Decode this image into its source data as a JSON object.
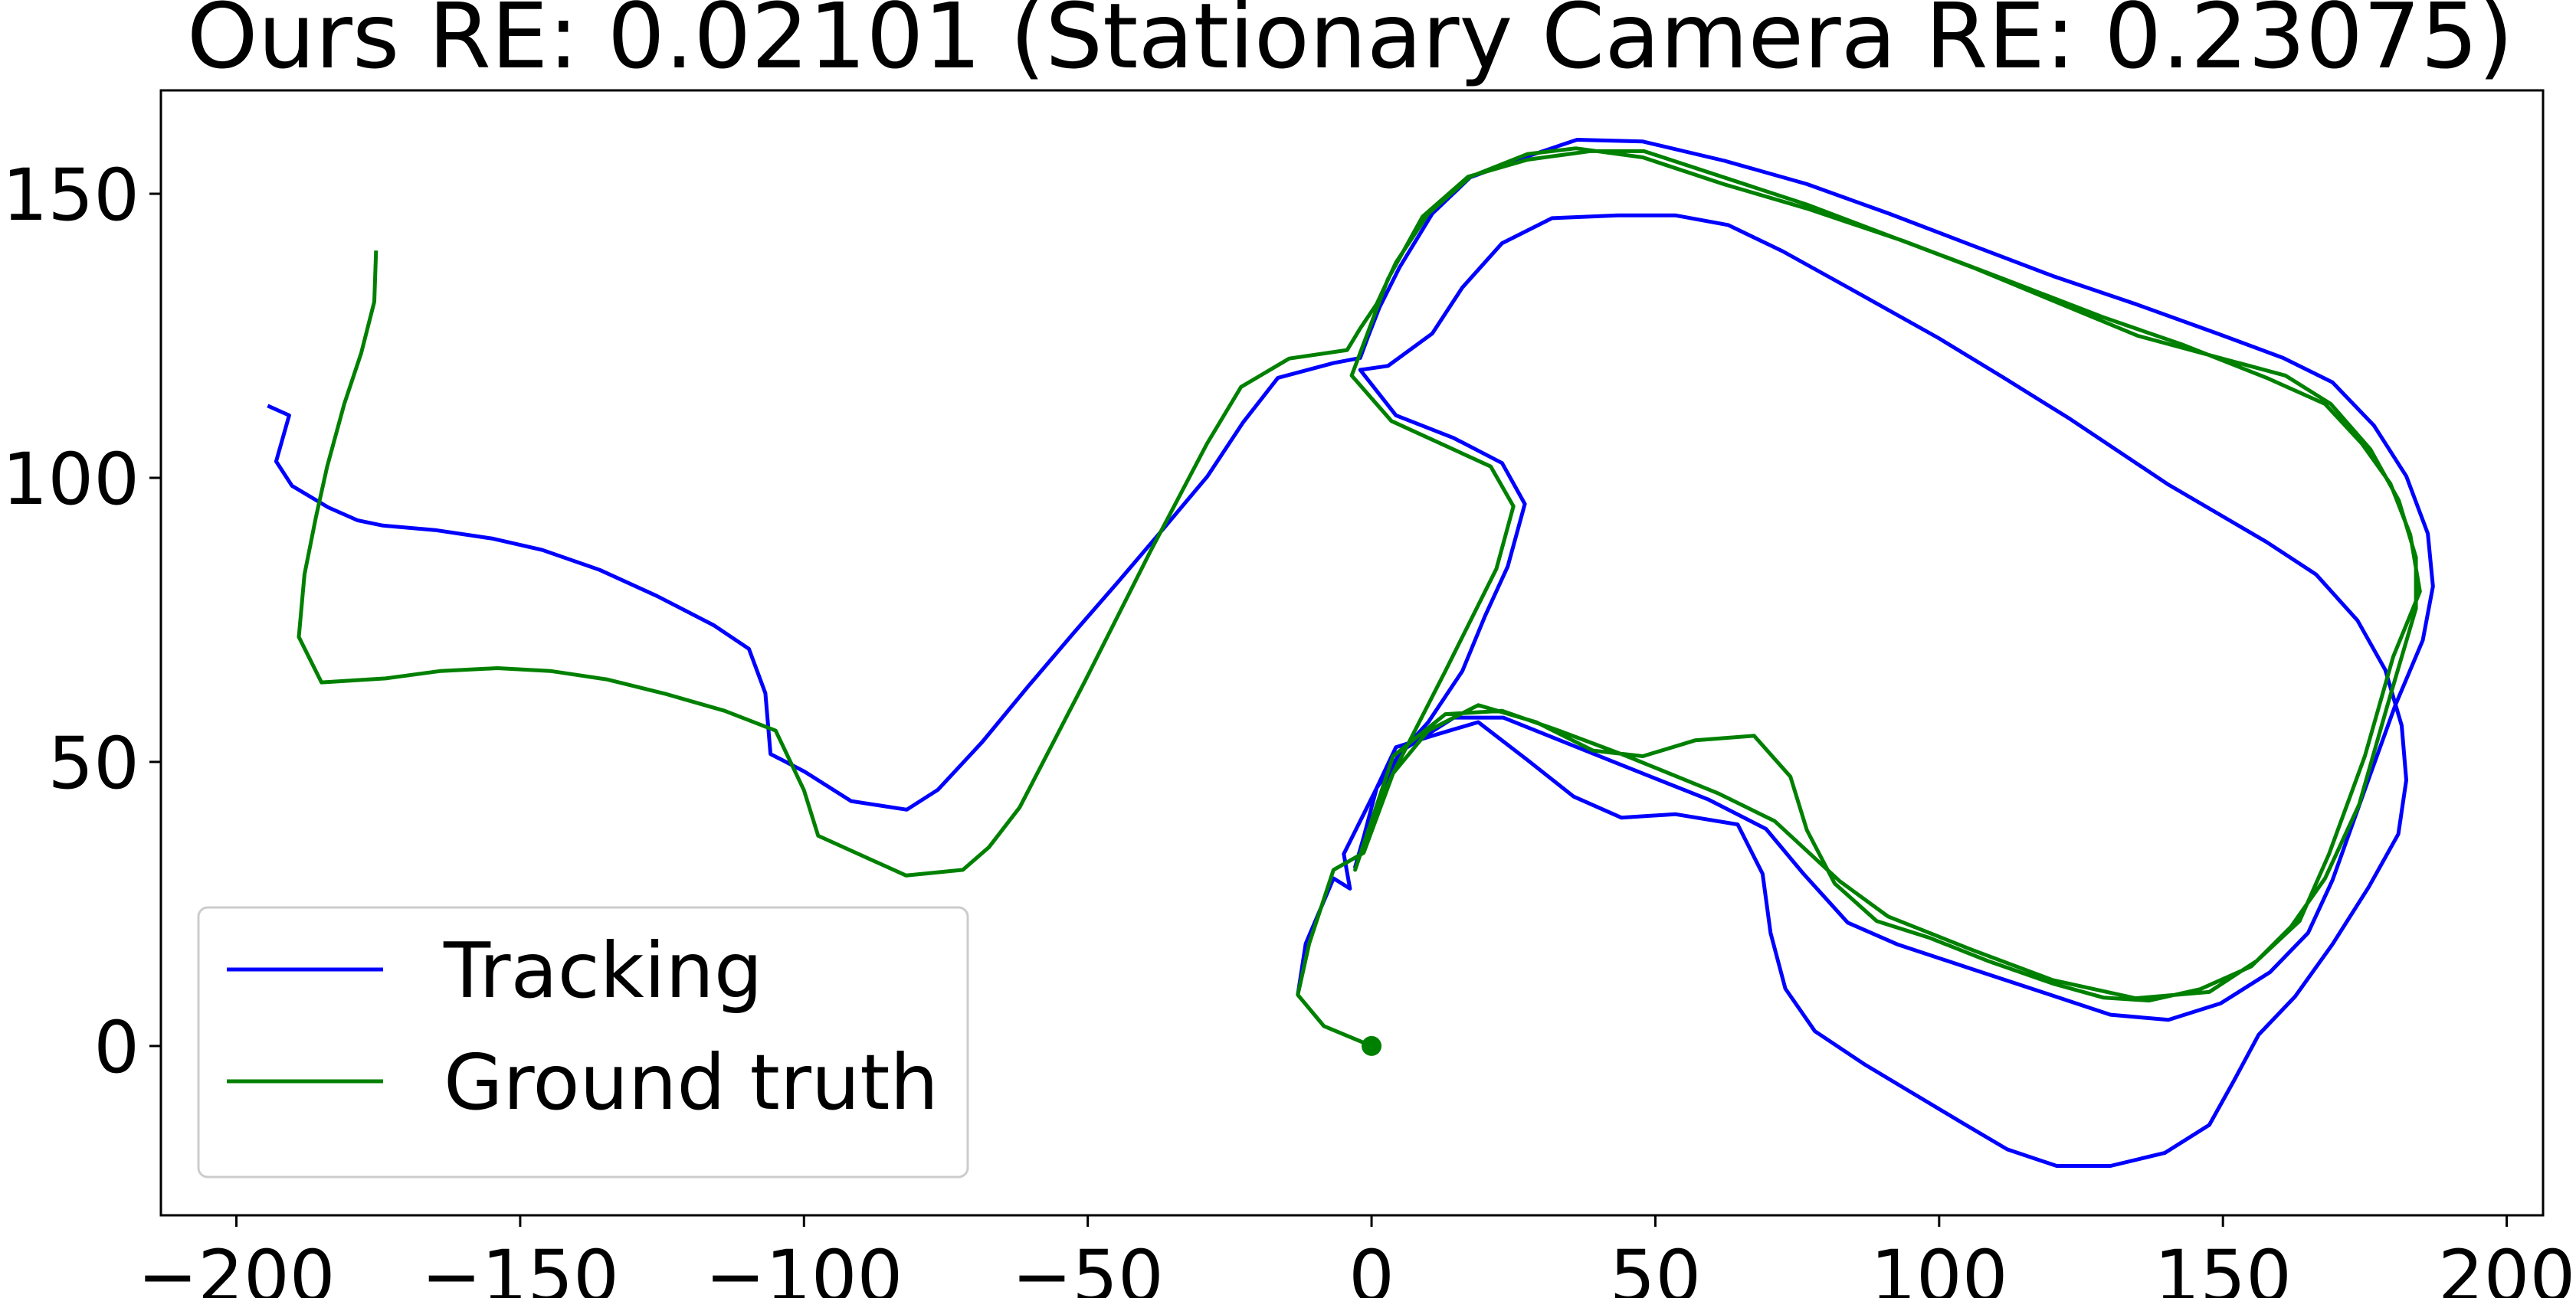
{
  "chart_data": {
    "type": "line",
    "title": "Ours RE: 0.02101 (Stationary Camera RE: 0.23075)",
    "xlim": [
      -213.3,
      206.4
    ],
    "ylim": [
      -29.8,
      168.2
    ],
    "xticks": [
      {
        "value": -200,
        "label": "−200"
      },
      {
        "value": -150,
        "label": "−150"
      },
      {
        "value": -100,
        "label": "−100"
      },
      {
        "value": -50,
        "label": "−50"
      },
      0,
      50,
      100,
      150,
      200
    ],
    "yticks": [
      0,
      50,
      100,
      150
    ],
    "grid": false,
    "legend": "lower left",
    "series": [
      {
        "name": "Tracking",
        "color": "#0000ff",
        "x": [
          -13,
          -11.6,
          -6.7,
          -3.8,
          -4.9,
          0.9,
          5.2,
          10,
          16,
          20,
          24,
          27,
          23,
          14.5,
          4.3,
          -2,
          2.9,
          10.7,
          16,
          23,
          31.8,
          43.4,
          53.5,
          62.8,
          72.4,
          85.4,
          99.9,
          111.4,
          123,
          140.4,
          157.7,
          166.4,
          173.7,
          178.6,
          181.5,
          182.3,
          180.9,
          175.7,
          169.3,
          162.7,
          156.3,
          152,
          147.6,
          139.8,
          130.2,
          120.7,
          112,
          104.2,
          94,
          86.8,
          78.1,
          72.9,
          70.3,
          68.9,
          64.5,
          53.5,
          44,
          35.6,
          27.5,
          18.8,
          10.7,
          4.3,
          0.9,
          -1.4,
          -2.9,
          0,
          4.9,
          14.5,
          23.2,
          32.7,
          44.9,
          59.3,
          69.5,
          76.1,
          83.9,
          92.6,
          105.6,
          117.2,
          130.2,
          140.4,
          149.6,
          158.3,
          165,
          169.3,
          175.1,
          180.3,
          185.2,
          187,
          186.1,
          182.3,
          176.6,
          169.3,
          160.6,
          149,
          134.6,
          120.1,
          105.6,
          91.2,
          76.7,
          62.2,
          47.8,
          36.2,
          27.5,
          17.4,
          10.7,
          4.9,
          1.4,
          -0.6,
          -2,
          -6.7,
          -16.5,
          -22.6,
          -28.9,
          -36.2,
          -44.3,
          -52.4,
          -60.5,
          -68.6,
          -76.4,
          -81.9,
          -91.7,
          -99.9,
          -105.9,
          -106.8,
          -109.7,
          -115.8,
          -125.9,
          -136,
          -146.1,
          -154.8,
          -165,
          -174.2,
          -178.6,
          -183.8,
          -190.2,
          -193,
          -190.7,
          -194.5
        ],
        "values": [
          9,
          18,
          29.5,
          27.7,
          33.8,
          45.4,
          51.7,
          57,
          66,
          75.7,
          84.4,
          95.4,
          102.6,
          107,
          111,
          119,
          119.7,
          125.4,
          133.5,
          141.3,
          145.7,
          146.2,
          146.2,
          144.5,
          139.9,
          132.7,
          124.6,
          117.6,
          110.4,
          98.8,
          88.7,
          83,
          74.9,
          66.2,
          56.4,
          46.8,
          37.3,
          28,
          17.9,
          8.7,
          2,
          -6,
          -13.9,
          -18.8,
          -21.1,
          -21.1,
          -18.2,
          -13.6,
          -7.5,
          -3.2,
          2.6,
          10.1,
          19.9,
          30.3,
          39,
          40.8,
          40.2,
          43.9,
          50.3,
          57,
          54.6,
          52.6,
          45.4,
          36.7,
          31.5,
          39.6,
          51.7,
          57.8,
          57.8,
          54,
          49.1,
          43.4,
          38.2,
          30.3,
          21.7,
          17.9,
          13.6,
          9.8,
          5.5,
          4.6,
          7.5,
          13,
          19.9,
          29.2,
          45.4,
          59.8,
          71.4,
          80.9,
          90.2,
          100.3,
          109.2,
          116.8,
          121.1,
          125.4,
          130.6,
          135.5,
          141,
          146.5,
          151.7,
          155.8,
          159.2,
          159.5,
          156.6,
          152.9,
          146.5,
          137,
          130,
          124.9,
          121.1,
          120.2,
          117.6,
          109.8,
          100.3,
          91.6,
          82.1,
          72.8,
          63.3,
          53.5,
          45.1,
          41.6,
          43.1,
          48.3,
          51.4,
          62.1,
          69.9,
          74,
          79.2,
          83.8,
          87.3,
          89.3,
          90.8,
          91.6,
          92.5,
          94.8,
          98.6,
          102.9,
          111,
          112.7
        ]
      },
      {
        "name": "Ground truth",
        "color": "#008000",
        "start_marker": true,
        "x": [
          0,
          -8.4,
          -13,
          -11,
          -6.7,
          -1.4,
          3.8,
          13,
          22,
          25,
          21,
          3.5,
          -3.5,
          2.9,
          9,
          17,
          27.5,
          38.5,
          48,
          77,
          106,
          135,
          161,
          169,
          176,
          181,
          184,
          184,
          179,
          174,
          168,
          162,
          155,
          146,
          137,
          129,
          120,
          108.5,
          98.4,
          89,
          81.6,
          76.7,
          73.8,
          67.4,
          57,
          47.8,
          39,
          29,
          18.8,
          10,
          3.8,
          0,
          -2.9,
          3.8,
          13,
          23,
          33,
          45,
          61,
          71,
          82.5,
          91,
          105.6,
          120,
          134.6,
          147.6,
          156,
          163.5,
          168.7,
          175,
          180,
          184.7,
          183,
          179.5,
          174.5,
          168,
          157.7,
          143,
          128.8,
          111.4,
          94,
          76.7,
          62,
          47.8,
          36,
          27.5,
          17.4,
          10,
          4.3,
          0.9,
          -2,
          -4.3,
          -14.5,
          -23,
          -29,
          -39,
          -50.6,
          -62,
          -67.4,
          -72,
          -82,
          -97.5,
          -100,
          -105,
          -114,
          -124.5,
          -134.6,
          -144.7,
          -154,
          -164,
          -173.7,
          -185,
          -189,
          -188,
          -186,
          -184,
          -181,
          -178,
          -175.7,
          -175.4
        ],
        "values": [
          0,
          3.5,
          9,
          18,
          31,
          34,
          48,
          66,
          84,
          95,
          102,
          110,
          118,
          135,
          146,
          153,
          156,
          157.5,
          157.5,
          148,
          137,
          125,
          118,
          113,
          105,
          96,
          86,
          77,
          60,
          42.5,
          29.5,
          21,
          14,
          10,
          8,
          8.5,
          11,
          15,
          19,
          22,
          28.6,
          38,
          47.4,
          54.6,
          53.8,
          51,
          52,
          57,
          60,
          55.5,
          48,
          39.6,
          31,
          51,
          58.4,
          59,
          55.5,
          51,
          44.5,
          39.6,
          29,
          22.8,
          17,
          11.6,
          8.4,
          9.5,
          15,
          22,
          33.8,
          51,
          68.5,
          80,
          90,
          99,
          106,
          113,
          117.6,
          123.4,
          128.3,
          135,
          141.6,
          147.4,
          151.7,
          156.4,
          158,
          157,
          153,
          146.5,
          137.9,
          130.6,
          126.3,
          122.5,
          121,
          116,
          106,
          87,
          64,
          42,
          35,
          31,
          30,
          37,
          45,
          55.5,
          59,
          62,
          64.5,
          66,
          66.5,
          66,
          64.7,
          64,
          72,
          83,
          93,
          102,
          113,
          122,
          131,
          140
        ]
      }
    ]
  }
}
